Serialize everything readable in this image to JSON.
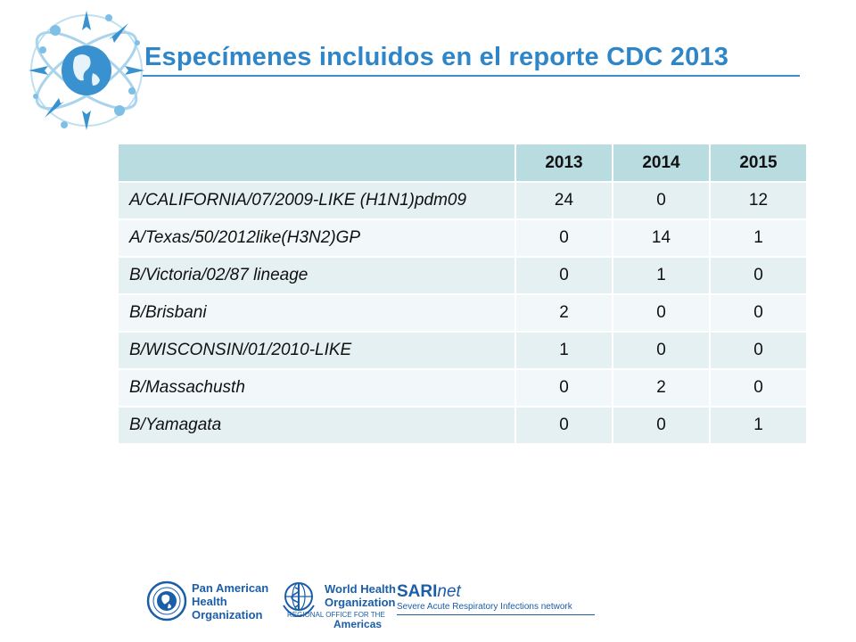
{
  "title": "Especímenes incluidos en el reporte CDC 2013",
  "table": {
    "headers": [
      "",
      "2013",
      "2014",
      "2015"
    ],
    "rows": [
      {
        "name": "A/CALIFORNIA/07/2009-LIKE (H1N1)pdm09",
        "v2013": "24",
        "v2014": "0",
        "v2015": "12"
      },
      {
        "name": "A/Texas/50/2012like(H3N2)GP",
        "v2013": "0",
        "v2014": "14",
        "v2015": "1"
      },
      {
        "name": "B/Victoria/02/87 lineage",
        "v2013": "0",
        "v2014": "1",
        "v2015": "0"
      },
      {
        "name": "B/Brisbani",
        "v2013": "2",
        "v2014": "0",
        "v2015": "0"
      },
      {
        "name": "B/WISCONSIN/01/2010-LIKE",
        "v2013": "1",
        "v2014": "0",
        "v2015": "0"
      },
      {
        "name": "B/Massachusth",
        "v2013": "0",
        "v2014": "2",
        "v2015": "0"
      },
      {
        "name": "B/Yamagata",
        "v2013": "0",
        "v2014": "0",
        "v2015": "1"
      }
    ]
  },
  "footer": {
    "paho_line1": "Pan American",
    "paho_line2": "Health",
    "paho_line3": "Organization",
    "who_line1": "World Health",
    "who_line2": "Organization",
    "who_sub": "REGIONAL OFFICE FOR THE",
    "who_americas": "Americas",
    "sari_bold": "SARI",
    "sari_italic": "net",
    "sari_tagline": "Severe Acute Respiratory Infections network"
  },
  "colors": {
    "accent": "#2e86c9",
    "header_bg": "#b8dce0",
    "row_bg": "#e4f0f2",
    "logo_blue": "#1a5ea8"
  }
}
